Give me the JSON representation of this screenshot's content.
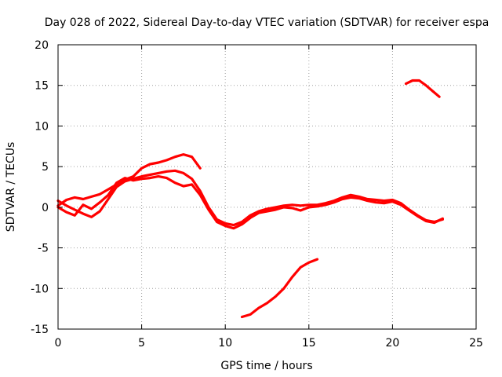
{
  "chart_data": {
    "type": "line",
    "title": "Day 028 of 2022, Sidereal Day-to-day VTEC variation (SDTVAR) for receiver espa",
    "xlabel": "GPS time / hours",
    "ylabel": "SDTVAR / TECUs",
    "xlim": [
      0,
      25
    ],
    "ylim": [
      -15,
      20
    ],
    "xticks": [
      0,
      5,
      10,
      15,
      20,
      25
    ],
    "yticks": [
      -15,
      -10,
      -5,
      0,
      5,
      10,
      15,
      20
    ],
    "grid": true,
    "color": "#ff0000",
    "series": [
      {
        "name": "trace-1",
        "x": [
          0.0,
          0.5,
          1.0,
          1.5,
          2.0,
          2.5,
          3.0,
          3.5,
          4.0,
          4.5,
          5.0,
          5.5,
          6.0,
          6.5,
          7.0,
          7.5,
          8.0,
          8.5,
          9.0,
          9.5,
          10.0,
          10.5,
          11.0,
          11.5,
          12.0,
          12.5,
          13.0,
          13.5,
          14.0,
          14.5,
          15.0,
          15.5,
          16.0,
          16.5,
          17.0,
          17.5,
          18.0,
          18.5,
          19.0,
          19.5,
          20.0,
          20.5,
          21.0,
          21.5,
          22.0,
          22.5,
          23.0
        ],
        "y": [
          0.8,
          0.2,
          -0.3,
          -0.8,
          -1.2,
          -0.5,
          1.0,
          2.5,
          3.2,
          3.5,
          3.8,
          4.0,
          4.2,
          4.4,
          4.5,
          4.2,
          3.5,
          2.0,
          0.0,
          -1.5,
          -2.0,
          -2.2,
          -1.8,
          -1.0,
          -0.5,
          -0.2,
          0.0,
          0.2,
          0.3,
          0.2,
          0.3,
          0.3,
          0.5,
          0.8,
          1.2,
          1.5,
          1.3,
          1.0,
          0.9,
          0.8,
          0.9,
          0.5,
          -0.3,
          -1.0,
          -1.6,
          -1.8,
          -1.5
        ]
      },
      {
        "name": "trace-2",
        "x": [
          0.0,
          0.5,
          1.0,
          1.5,
          2.0,
          2.5,
          3.0,
          3.5,
          4.0,
          4.5,
          5.0,
          5.5,
          6.0,
          6.5,
          7.0,
          7.5,
          8.0,
          8.5,
          9.0,
          9.5,
          10.0,
          10.5,
          11.0,
          11.5,
          12.0,
          12.5,
          13.0,
          13.5,
          14.0,
          14.5,
          15.0,
          15.5,
          16.0,
          16.5,
          17.0,
          17.5,
          18.0,
          18.5,
          19.0,
          19.5,
          20.0,
          20.5,
          21.0,
          21.5,
          22.0,
          22.5,
          23.0
        ],
        "y": [
          0.0,
          -0.6,
          -1.0,
          0.3,
          -0.2,
          0.6,
          1.5,
          3.0,
          3.6,
          3.3,
          3.5,
          3.6,
          3.8,
          3.6,
          3.0,
          2.6,
          2.8,
          1.5,
          -0.3,
          -1.8,
          -2.3,
          -2.6,
          -2.1,
          -1.3,
          -0.7,
          -0.5,
          -0.3,
          0.0,
          -0.1,
          -0.4,
          0.0,
          0.1,
          0.3,
          0.6,
          1.0,
          1.2,
          1.1,
          0.8,
          0.6,
          0.5,
          0.7,
          0.3,
          -0.4,
          -1.1,
          -1.7,
          -1.9,
          -1.4
        ]
      },
      {
        "name": "trace-3",
        "x": [
          0.0,
          0.5,
          1.0,
          1.5,
          2.0,
          2.5,
          3.0,
          3.5,
          4.0,
          4.5,
          5.0,
          5.5,
          6.0,
          6.5,
          7.0,
          7.5,
          8.0,
          8.5
        ],
        "y": [
          0.2,
          0.9,
          1.2,
          1.0,
          1.3,
          1.6,
          2.2,
          2.8,
          3.4,
          3.8,
          4.8,
          5.3,
          5.5,
          5.8,
          6.2,
          6.5,
          6.2,
          4.8
        ]
      },
      {
        "name": "trace-4",
        "x": [
          11.0,
          11.5,
          12.0,
          12.5,
          13.0,
          13.5,
          14.0,
          14.5,
          15.0,
          15.5
        ],
        "y": [
          -13.5,
          -13.2,
          -12.4,
          -11.8,
          -11.0,
          -10.0,
          -8.6,
          -7.4,
          -6.8,
          -6.4
        ]
      },
      {
        "name": "trace-5",
        "x": [
          20.8,
          21.2,
          21.6,
          22.0,
          22.4,
          22.8
        ],
        "y": [
          15.2,
          15.6,
          15.6,
          15.0,
          14.3,
          13.6
        ]
      }
    ]
  }
}
